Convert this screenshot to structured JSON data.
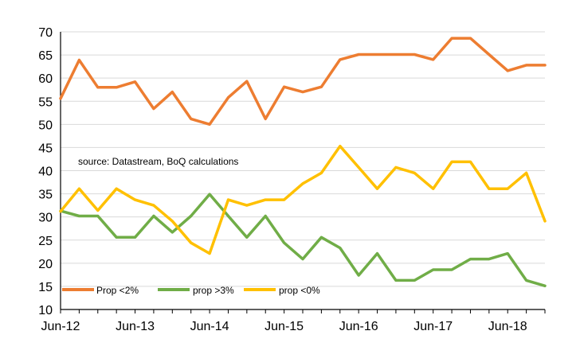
{
  "chart_data": {
    "type": "line",
    "title": "",
    "xlabel": "",
    "ylabel": "",
    "ylim": [
      10,
      70
    ],
    "yticks": [
      10,
      15,
      20,
      25,
      30,
      35,
      40,
      45,
      50,
      55,
      60,
      65,
      70
    ],
    "x": [
      "Jun-12",
      "Sep-12",
      "Dec-12",
      "Mar-13",
      "Jun-13",
      "Sep-13",
      "Dec-13",
      "Mar-14",
      "Jun-14",
      "Sep-14",
      "Dec-14",
      "Mar-15",
      "Jun-15",
      "Sep-15",
      "Dec-15",
      "Mar-16",
      "Jun-16",
      "Sep-16",
      "Dec-16",
      "Mar-17",
      "Jun-17",
      "Sep-17",
      "Dec-17",
      "Mar-18",
      "Jun-18",
      "Sep-18",
      "Dec-18"
    ],
    "xtick_labels": [
      "Jun-12",
      "Jun-13",
      "Jun-14",
      "Jun-15",
      "Jun-16",
      "Jun-17",
      "Jun-18"
    ],
    "grid": "horizontal",
    "legend_position": "bottom-left",
    "annotation": "source:  Datastream, BoQ calculations",
    "series": [
      {
        "name": "Prop <2%",
        "color": "#ED7D31",
        "values": [
          55.6,
          63.9,
          58.0,
          58.0,
          59.2,
          53.4,
          57.0,
          51.2,
          50.0,
          55.8,
          59.3,
          51.2,
          58.1,
          57.0,
          58.1,
          64.0,
          65.1,
          65.1,
          65.1,
          65.1,
          64.0,
          68.6,
          68.6,
          65.1,
          61.6,
          62.8,
          62.8
        ]
      },
      {
        "name": "prop >3%",
        "color": "#70AD47",
        "values": [
          31.3,
          30.2,
          30.2,
          25.6,
          25.6,
          30.2,
          26.7,
          30.2,
          34.9,
          30.2,
          25.6,
          30.2,
          24.4,
          20.9,
          25.6,
          23.3,
          17.4,
          22.1,
          16.3,
          16.3,
          18.6,
          18.6,
          20.9,
          20.9,
          22.1,
          16.3,
          15.1
        ]
      },
      {
        "name": "prop <0%",
        "color": "#FFC000",
        "values": [
          31.2,
          36.1,
          31.4,
          36.1,
          33.7,
          32.5,
          29.1,
          24.4,
          22.1,
          33.7,
          32.5,
          33.7,
          33.7,
          37.2,
          39.5,
          45.3,
          40.7,
          36.1,
          40.7,
          39.5,
          36.1,
          41.9,
          41.9,
          36.1,
          36.1,
          39.5,
          29.1
        ]
      }
    ]
  }
}
